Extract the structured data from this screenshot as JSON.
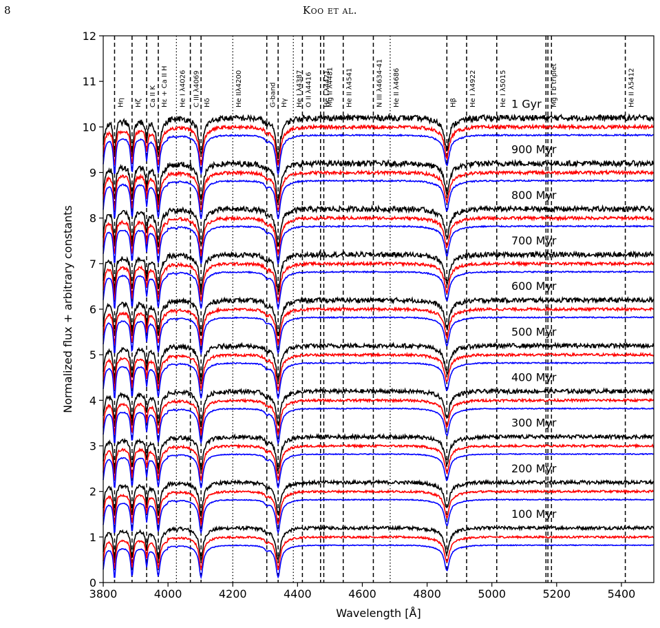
{
  "page": {
    "number": "8",
    "running_head": "Koo et al."
  },
  "chart_data": {
    "type": "line",
    "title": "",
    "xlabel": "Wavelength [Å]",
    "ylabel": "Normalized flux + arbitrary constants",
    "xlim": [
      3800,
      5500
    ],
    "ylim": [
      0,
      12
    ],
    "xticks": [
      3800,
      4000,
      4200,
      4400,
      4600,
      4800,
      5000,
      5200,
      5400
    ],
    "yticks": [
      0,
      1,
      2,
      3,
      4,
      5,
      6,
      7,
      8,
      9,
      10,
      11,
      12
    ],
    "grid": false,
    "colors": {
      "series_top": "#000000",
      "series_mid": "#ff0000",
      "series_bottom": "#0000ff",
      "guide": "#000000"
    },
    "series_offsets": {
      "top": 0.2,
      "mid": 0.0,
      "bottom": -0.18
    },
    "ages": [
      {
        "label": "100 Myr",
        "level": 1.0
      },
      {
        "label": "200 Myr",
        "level": 2.0
      },
      {
        "label": "300 Myr",
        "level": 3.0
      },
      {
        "label": "400 Myr",
        "level": 4.0
      },
      {
        "label": "500 Myr",
        "level": 5.0
      },
      {
        "label": "600 Myr",
        "level": 6.0
      },
      {
        "label": "700 Myr",
        "level": 7.0
      },
      {
        "label": "800 Myr",
        "level": 8.0
      },
      {
        "label": "900 Myr",
        "level": 9.0
      },
      {
        "label": "1 Gyr",
        "level": 10.0
      }
    ],
    "lines": [
      {
        "label": "Hη",
        "wavelength": 3835,
        "style": "dashed"
      },
      {
        "label": "Hζ",
        "wavelength": 3889,
        "style": "dashed"
      },
      {
        "label": "Ca II K",
        "wavelength": 3934,
        "style": "dashed"
      },
      {
        "label": "Hε + Ca II H",
        "wavelength": 3970,
        "style": "dashed"
      },
      {
        "label": "He I λ4026",
        "wavelength": 4026,
        "style": "dotted"
      },
      {
        "label": "C III λ4069",
        "wavelength": 4069,
        "style": "dashed"
      },
      {
        "label": "Hδ",
        "wavelength": 4102,
        "style": "dashed"
      },
      {
        "label": "He IIλ4200",
        "wavelength": 4200,
        "style": "dotted"
      },
      {
        "label": "G-band",
        "wavelength": 4305,
        "style": "dashed"
      },
      {
        "label": "Hγ",
        "wavelength": 4340,
        "style": "dashed"
      },
      {
        "label": "He I λ4387",
        "wavelength": 4387,
        "style": "dotted"
      },
      {
        "label": "O II λ4416",
        "wavelength": 4415,
        "style": "dashed"
      },
      {
        "label": "He I λ4471",
        "wavelength": 4471,
        "style": "dashed"
      },
      {
        "label": "Mg II λ4481",
        "wavelength": 4481,
        "style": "dashed"
      },
      {
        "label": "He II λ4541",
        "wavelength": 4541,
        "style": "dashed"
      },
      {
        "label": "N III λ4634-41",
        "wavelength": 4634,
        "style": "dashed"
      },
      {
        "label": "He II λ4686",
        "wavelength": 4686,
        "style": "dotted"
      },
      {
        "label": "Hβ",
        "wavelength": 4861,
        "style": "dashed"
      },
      {
        "label": "He I λ4922",
        "wavelength": 4922,
        "style": "dashed"
      },
      {
        "label": "He I λ5015",
        "wavelength": 5015,
        "style": "dashed"
      },
      {
        "label": "Mg I b triplet",
        "wavelength": 5173,
        "style": "dashed"
      },
      {
        "label": "He II λ5412",
        "wavelength": 5412,
        "style": "dashed"
      }
    ],
    "mg_triplet_extra": [
      5167,
      5184
    ],
    "absorption_features": [
      {
        "center": 3798,
        "depth": 0.6,
        "width": 6
      },
      {
        "center": 3835,
        "depth": 0.75,
        "width": 4
      },
      {
        "center": 3889,
        "depth": 0.7,
        "width": 5
      },
      {
        "center": 3934,
        "depth": 0.45,
        "width": 3.5
      },
      {
        "center": 3970,
        "depth": 0.65,
        "width": 6
      },
      {
        "center": 4102,
        "depth": 0.7,
        "width": 7
      },
      {
        "center": 4305,
        "depth": 0.08,
        "width": 6
      },
      {
        "center": 4340,
        "depth": 0.7,
        "width": 8
      },
      {
        "center": 4861,
        "depth": 0.55,
        "width": 9
      },
      {
        "center": 4026,
        "depth": 0.04,
        "width": 3
      }
    ]
  }
}
